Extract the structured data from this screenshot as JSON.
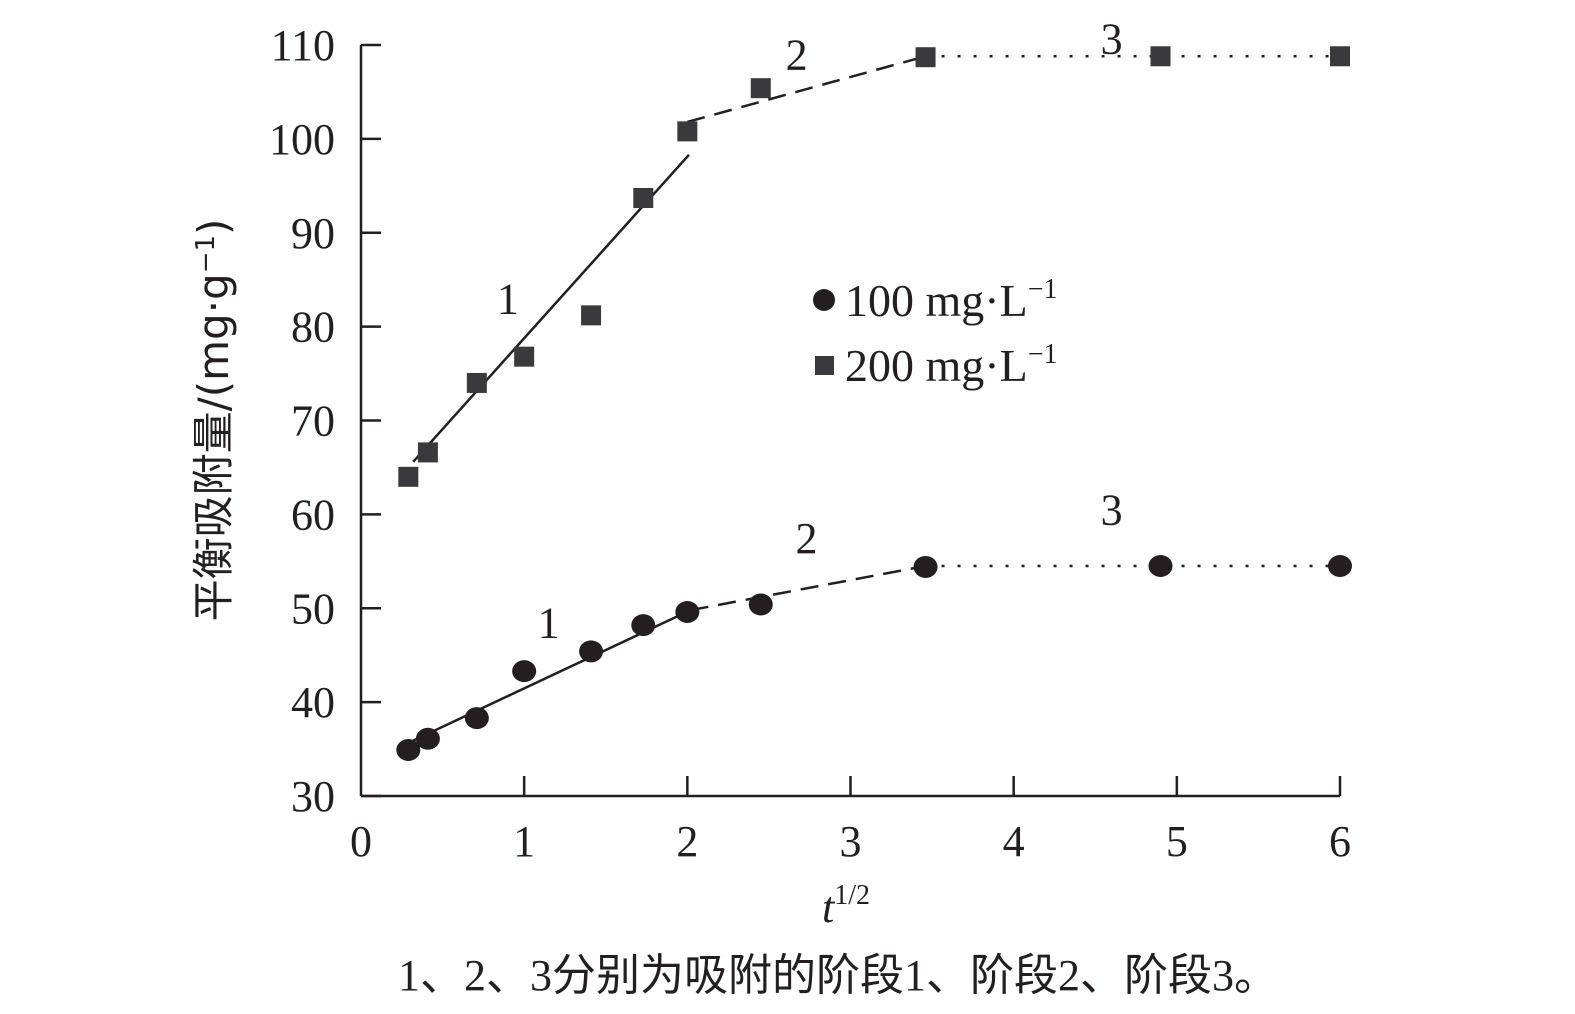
{
  "chart_data": {
    "type": "scatter",
    "title": "",
    "xlabel": "t",
    "xlabel_sup": "1/2",
    "ylabel": "平衡吸附量/(mg·g",
    "ylabel_sup": "−1",
    "ylabel_close": ")",
    "xlim": [
      0,
      6
    ],
    "ylim": [
      30,
      110
    ],
    "xticks": [
      0,
      1,
      2,
      3,
      4,
      5,
      6
    ],
    "yticks": [
      30,
      40,
      50,
      60,
      70,
      80,
      90,
      100,
      110
    ],
    "grid": false,
    "legend_position": "center",
    "series": [
      {
        "name": "100 mg·L",
        "name_sup": "−1",
        "marker": "circle",
        "color": "#231f20",
        "x": [
          0.29,
          0.41,
          0.71,
          1.0,
          1.41,
          1.73,
          2.0,
          2.45,
          3.46,
          4.9,
          6.0
        ],
        "y": [
          34.9,
          36.1,
          38.3,
          43.3,
          45.4,
          48.2,
          49.6,
          50.4,
          54.4,
          54.5,
          54.5
        ],
        "fits": [
          {
            "stage": "1",
            "style": "solid",
            "x": [
              0.32,
              2.02
            ],
            "y": [
              35.9,
              49.8
            ]
          },
          {
            "stage": "2",
            "style": "dashed",
            "x": [
              2.02,
              3.46
            ],
            "y": [
              49.8,
              54.5
            ]
          },
          {
            "stage": "3",
            "style": "dotted",
            "x": [
              3.46,
              6.0
            ],
            "y": [
              54.5,
              54.5
            ]
          }
        ],
        "annotations": [
          {
            "text": "1",
            "x": 1.15,
            "y": 48.5
          },
          {
            "text": "2",
            "x": 2.73,
            "y": 57.5
          },
          {
            "text": "3",
            "x": 4.6,
            "y": 60.5
          }
        ]
      },
      {
        "name": "200 mg·L",
        "name_sup": "−1",
        "marker": "square",
        "color": "#3a3a3c",
        "x": [
          0.29,
          0.41,
          0.71,
          1.0,
          1.41,
          1.73,
          2.0,
          2.45,
          3.46,
          4.9,
          6.0
        ],
        "y": [
          64.0,
          66.6,
          74.0,
          76.8,
          81.2,
          93.7,
          100.8,
          105.4,
          108.7,
          108.8,
          108.8
        ],
        "fits": [
          {
            "stage": "1",
            "style": "solid",
            "x": [
              0.32,
              2.01
            ],
            "y": [
              65.6,
              98.3
            ]
          },
          {
            "stage": "2",
            "style": "dashed",
            "x": [
              2.0,
              3.46
            ],
            "y": [
              101.8,
              108.8
            ]
          },
          {
            "stage": "3",
            "style": "dotted",
            "x": [
              3.46,
              6.0
            ],
            "y": [
              108.8,
              108.8
            ]
          }
        ],
        "annotations": [
          {
            "text": "1",
            "x": 0.9,
            "y": 83.0
          },
          {
            "text": "2",
            "x": 2.67,
            "y": 109.0
          },
          {
            "text": "3",
            "x": 4.6,
            "y": 110.7
          }
        ]
      }
    ],
    "caption": "1、2、3分别为吸附的阶段1、阶段2、阶段3。"
  }
}
